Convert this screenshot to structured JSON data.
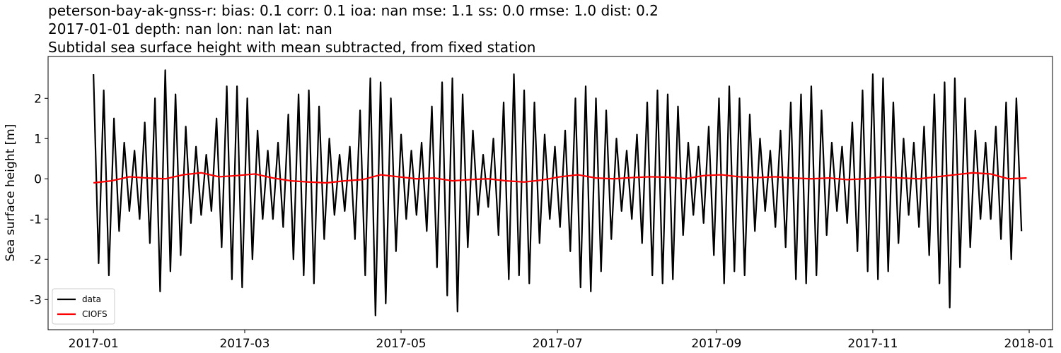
{
  "chart_data": {
    "type": "line",
    "title": "peterson-bay-ak-gnss-r: bias: 0.1  corr: 0.1  ioa: nan  mse: 1.1  ss: 0.0  rmse: 1.0  dist: 0.2",
    "subtitle": "2017-01-01 depth: nan lon: nan lat: nan",
    "description": "Subtidal sea surface height with mean subtracted, from fixed station",
    "ylabel": "Sea surface height [m]",
    "xlim": [
      -17.7,
      374.1
    ],
    "xticks": [
      {
        "value": 0,
        "label": "2017-01"
      },
      {
        "value": 59,
        "label": "2017-03"
      },
      {
        "value": 120,
        "label": "2017-05"
      },
      {
        "value": 181,
        "label": "2017-07"
      },
      {
        "value": 243,
        "label": "2017-09"
      },
      {
        "value": 304,
        "label": "2017-11"
      },
      {
        "value": 365,
        "label": "2018-01"
      }
    ],
    "ylim": [
      -3.75,
      3.04
    ],
    "yticks": [
      -3,
      -2,
      -1,
      0,
      1,
      2
    ],
    "legend": "lower left",
    "series": [
      {
        "name": "data",
        "color": "#000000",
        "x": [
          0,
          2,
          4,
          6,
          8,
          10,
          12,
          14,
          16,
          18,
          20,
          22,
          24,
          26,
          28,
          30,
          32,
          34,
          36,
          38,
          40,
          42,
          44,
          46,
          48,
          50,
          52,
          54,
          56,
          58,
          60,
          62,
          64,
          66,
          68,
          70,
          72,
          74,
          76,
          78,
          80,
          82,
          84,
          86,
          88,
          90,
          92,
          94,
          96,
          98,
          100,
          102,
          104,
          106,
          108,
          110,
          112,
          114,
          116,
          118,
          120,
          122,
          124,
          126,
          128,
          130,
          132,
          134,
          136,
          138,
          140,
          142,
          144,
          146,
          148,
          150,
          152,
          154,
          156,
          158,
          160,
          162,
          164,
          166,
          168,
          170,
          172,
          174,
          176,
          178,
          180,
          182,
          184,
          186,
          188,
          190,
          192,
          194,
          196,
          198,
          200,
          202,
          204,
          206,
          208,
          210,
          212,
          214,
          216,
          218,
          220,
          222,
          224,
          226,
          228,
          230,
          232,
          234,
          236,
          238,
          240,
          242,
          244,
          246,
          248,
          250,
          252,
          254,
          256,
          258,
          260,
          262,
          264,
          266,
          268,
          270,
          272,
          274,
          276,
          278,
          280,
          282,
          284,
          286,
          288,
          290,
          292,
          294,
          296,
          298,
          300,
          302,
          304,
          306,
          308,
          310,
          312,
          314,
          316,
          318,
          320,
          322,
          324,
          326,
          328,
          330,
          332,
          334,
          336,
          338,
          340,
          342,
          344,
          346,
          348,
          350,
          352,
          354,
          356,
          358,
          360,
          362
        ],
        "values": [
          2.6,
          -2.1,
          2.2,
          -2.4,
          1.5,
          -1.3,
          0.9,
          -0.8,
          0.7,
          -1.0,
          1.4,
          -1.6,
          2.0,
          -2.8,
          2.7,
          -2.3,
          2.1,
          -1.9,
          1.3,
          -1.1,
          0.8,
          -0.9,
          0.6,
          -0.8,
          1.5,
          -1.7,
          2.3,
          -2.5,
          2.3,
          -2.7,
          2.0,
          -2.0,
          1.2,
          -1.0,
          0.7,
          -1.0,
          0.9,
          -1.2,
          1.6,
          -2.0,
          2.1,
          -2.4,
          2.2,
          -2.6,
          1.8,
          -1.5,
          1.0,
          -0.9,
          0.6,
          -0.8,
          0.8,
          -1.5,
          1.7,
          -2.4,
          2.5,
          -3.4,
          2.4,
          -3.1,
          2.0,
          -1.8,
          1.1,
          -1.0,
          0.7,
          -0.9,
          0.9,
          -1.3,
          1.8,
          -2.2,
          2.4,
          -2.9,
          2.5,
          -3.3,
          2.1,
          -1.7,
          1.2,
          -0.9,
          0.6,
          -0.7,
          1.0,
          -1.4,
          1.9,
          -2.5,
          2.6,
          -2.4,
          2.2,
          -2.6,
          1.9,
          -1.6,
          1.1,
          -1.0,
          0.8,
          -1.2,
          1.2,
          -1.8,
          2.0,
          -2.7,
          2.3,
          -2.8,
          2.0,
          -2.3,
          1.7,
          -1.5,
          1.0,
          -0.8,
          0.7,
          -1.0,
          1.1,
          -1.6,
          1.9,
          -2.4,
          2.2,
          -2.6,
          2.1,
          -2.5,
          1.8,
          -1.4,
          0.9,
          -0.9,
          0.8,
          -1.1,
          1.3,
          -1.9,
          2.0,
          -2.6,
          2.3,
          -2.3,
          2.0,
          -2.4,
          1.6,
          -1.3,
          1.0,
          -0.8,
          0.7,
          -1.2,
          1.2,
          -1.7,
          1.9,
          -2.5,
          2.1,
          -2.6,
          2.3,
          -2.4,
          1.7,
          -1.4,
          0.9,
          -0.8,
          0.8,
          -1.1,
          1.4,
          -1.8,
          2.2,
          -2.3,
          2.6,
          -2.5,
          2.5,
          -2.3,
          1.9,
          -1.6,
          1.0,
          -0.9,
          0.9,
          -1.2,
          1.3,
          -1.9,
          2.1,
          -2.6,
          2.4,
          -3.2,
          2.5,
          -2.2,
          2.0,
          -1.7,
          1.2,
          -1.0,
          0.9,
          -1.0,
          1.3,
          -1.5,
          1.9,
          -2.0,
          2.0,
          -1.3
        ]
      },
      {
        "name": "CIOFS",
        "color": "#ff0000",
        "x": [
          0,
          7,
          14,
          21,
          28,
          35,
          42,
          49,
          56,
          63,
          70,
          77,
          84,
          91,
          98,
          105,
          112,
          119,
          126,
          133,
          140,
          147,
          154,
          161,
          168,
          175,
          182,
          189,
          196,
          203,
          210,
          217,
          224,
          231,
          238,
          245,
          252,
          259,
          266,
          273,
          280,
          287,
          294,
          301,
          308,
          315,
          322,
          329,
          336,
          343,
          350,
          357,
          364
        ],
        "values": [
          -0.1,
          -0.05,
          0.05,
          0.02,
          0.0,
          0.1,
          0.15,
          0.05,
          0.08,
          0.12,
          0.02,
          -0.05,
          -0.08,
          -0.1,
          -0.05,
          -0.02,
          0.1,
          0.05,
          0.0,
          0.02,
          -0.05,
          -0.02,
          0.0,
          -0.05,
          -0.08,
          -0.03,
          0.05,
          0.1,
          0.02,
          0.0,
          0.03,
          0.05,
          0.04,
          0.0,
          0.08,
          0.1,
          0.05,
          0.03,
          0.05,
          0.02,
          0.0,
          0.02,
          -0.02,
          0.0,
          0.05,
          0.02,
          0.0,
          0.05,
          0.1,
          0.15,
          0.12,
          0.0,
          0.02
        ]
      }
    ]
  }
}
